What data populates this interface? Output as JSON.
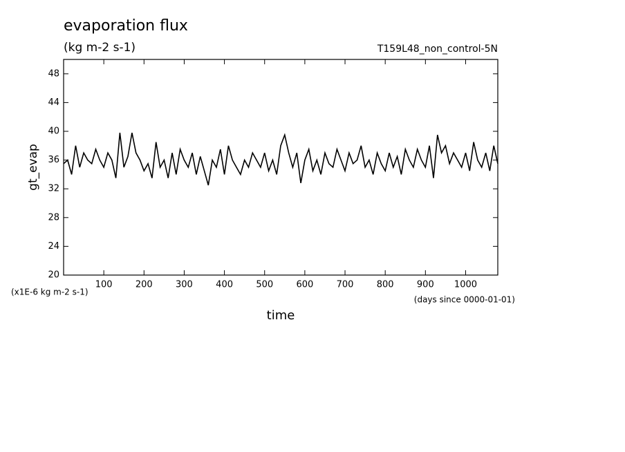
{
  "chart_data": {
    "type": "line",
    "title": "evaporation flux",
    "subtitle": "(kg m-2 s-1)",
    "experiment": "T159L48_non_control-5N",
    "y_label": "gt_evap",
    "x_label": "time",
    "y_scale_note": "(x1E-6 kg m-2 s-1)",
    "x_unit_note": "(days since 0000-01-01)",
    "xlim": [
      0,
      1080
    ],
    "ylim": [
      20,
      50
    ],
    "xticks": [
      100,
      200,
      300,
      400,
      500,
      600,
      700,
      800,
      900,
      1000
    ],
    "yticks": [
      20,
      24,
      28,
      32,
      36,
      40,
      44,
      48
    ],
    "x": [
      0,
      10,
      20,
      30,
      40,
      50,
      60,
      70,
      80,
      90,
      100,
      110,
      120,
      130,
      140,
      150,
      160,
      170,
      180,
      190,
      200,
      210,
      220,
      230,
      240,
      250,
      260,
      270,
      280,
      290,
      300,
      310,
      320,
      330,
      340,
      350,
      360,
      370,
      380,
      390,
      400,
      410,
      420,
      430,
      440,
      450,
      460,
      470,
      480,
      490,
      500,
      510,
      520,
      530,
      540,
      550,
      560,
      570,
      580,
      590,
      600,
      610,
      620,
      630,
      640,
      650,
      660,
      670,
      680,
      690,
      700,
      710,
      720,
      730,
      740,
      750,
      760,
      770,
      780,
      790,
      800,
      810,
      820,
      830,
      840,
      850,
      860,
      870,
      880,
      890,
      900,
      910,
      920,
      930,
      940,
      950,
      960,
      970,
      980,
      990,
      1000,
      1010,
      1020,
      1030,
      1040,
      1050,
      1060,
      1070,
      1080
    ],
    "series": [
      {
        "color": "#000000",
        "values": [
          35.5,
          36,
          34,
          38,
          35,
          37,
          36,
          35.5,
          37.5,
          36,
          35,
          37,
          36,
          33.5,
          39.8,
          35,
          36.5,
          39.8,
          37,
          36,
          34.5,
          35.5,
          33.5,
          38.5,
          35,
          36,
          33.5,
          37,
          34,
          37.5,
          36,
          35,
          37,
          34,
          36.5,
          34.5,
          32.5,
          36,
          35,
          37.5,
          34,
          38,
          36,
          35,
          34,
          36,
          35,
          37,
          36,
          35,
          37,
          34.5,
          36,
          34,
          38,
          39.5,
          37,
          35,
          37,
          32.8,
          36,
          37.5,
          34.5,
          36,
          34,
          37,
          35.5,
          35,
          37.5,
          36,
          34.5,
          37,
          35.5,
          36,
          38,
          35,
          36,
          34,
          37,
          35.5,
          34.5,
          37,
          35,
          36.5,
          34,
          37.5,
          36,
          35,
          37.5,
          36,
          35,
          38,
          33.5,
          39.5,
          37,
          38,
          35.5,
          37,
          36,
          35,
          37,
          34.5,
          38.5,
          36,
          35,
          37,
          34.5,
          38,
          35.5
        ]
      }
    ]
  }
}
